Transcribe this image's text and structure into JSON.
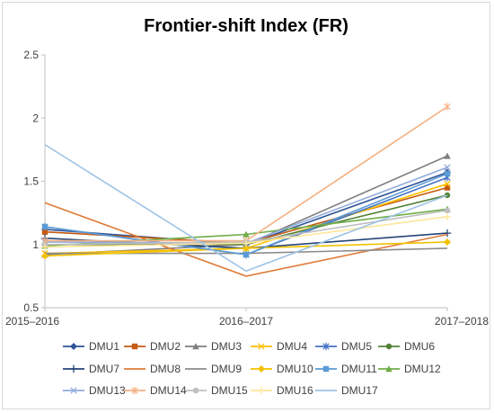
{
  "chart_data": {
    "type": "line",
    "title": "Frontier-shift Index (FR)",
    "xlabel": "",
    "ylabel": "",
    "categories": [
      "2015–2016",
      "2016–2017",
      "2017–2018"
    ],
    "ylim": [
      0.5,
      2.5
    ],
    "yticks": [
      "0.5",
      "1",
      "1.5",
      "2",
      "2.5"
    ],
    "grid": false,
    "legend": "bottom",
    "series": [
      {
        "name": "DMU1",
        "color": "#2f5597",
        "marker": "diamond",
        "values": [
          1.12,
          1.0,
          1.57
        ]
      },
      {
        "name": "DMU2",
        "color": "#c55a11",
        "marker": "square",
        "values": [
          1.1,
          1.01,
          1.45
        ]
      },
      {
        "name": "DMU3",
        "color": "#7f7f7f",
        "marker": "triangle",
        "values": [
          0.92,
          1.0,
          1.7
        ]
      },
      {
        "name": "DMU4",
        "color": "#ffc000",
        "marker": "x",
        "values": [
          0.93,
          0.97,
          1.48
        ]
      },
      {
        "name": "DMU5",
        "color": "#4472c4",
        "marker": "star",
        "values": [
          1.14,
          0.92,
          1.53
        ]
      },
      {
        "name": "DMU6",
        "color": "#548235",
        "marker": "circle",
        "values": [
          1.0,
          1.0,
          1.39
        ]
      },
      {
        "name": "DMU7",
        "color": "#264478",
        "marker": "plus",
        "values": [
          1.05,
          0.97,
          1.09
        ]
      },
      {
        "name": "DMU8",
        "color": "#e07b39",
        "marker": "none",
        "values": [
          1.33,
          0.75,
          1.08
        ]
      },
      {
        "name": "DMU9",
        "color": "#8c8c8c",
        "marker": "none",
        "values": [
          0.93,
          0.93,
          0.97
        ]
      },
      {
        "name": "DMU10",
        "color": "#f2c200",
        "marker": "diamond",
        "values": [
          0.91,
          0.97,
          1.02
        ]
      },
      {
        "name": "DMU11",
        "color": "#5b9bd5",
        "marker": "square",
        "values": [
          1.14,
          0.92,
          1.56
        ]
      },
      {
        "name": "DMU12",
        "color": "#70ad47",
        "marker": "triangle",
        "values": [
          0.99,
          1.08,
          1.28
        ]
      },
      {
        "name": "DMU13",
        "color": "#8faadc",
        "marker": "x",
        "values": [
          1.02,
          1.01,
          1.61
        ]
      },
      {
        "name": "DMU14",
        "color": "#f4b183",
        "marker": "star",
        "values": [
          1.03,
          1.03,
          2.09
        ]
      },
      {
        "name": "DMU15",
        "color": "#bfbfbf",
        "marker": "circle",
        "values": [
          1.0,
          1.02,
          1.27
        ]
      },
      {
        "name": "DMU16",
        "color": "#ffe699",
        "marker": "plus",
        "values": [
          0.98,
          1.01,
          1.22
        ]
      },
      {
        "name": "DMU17",
        "color": "#9dc3e6",
        "marker": "none",
        "values": [
          1.79,
          0.79,
          1.39
        ]
      }
    ]
  }
}
